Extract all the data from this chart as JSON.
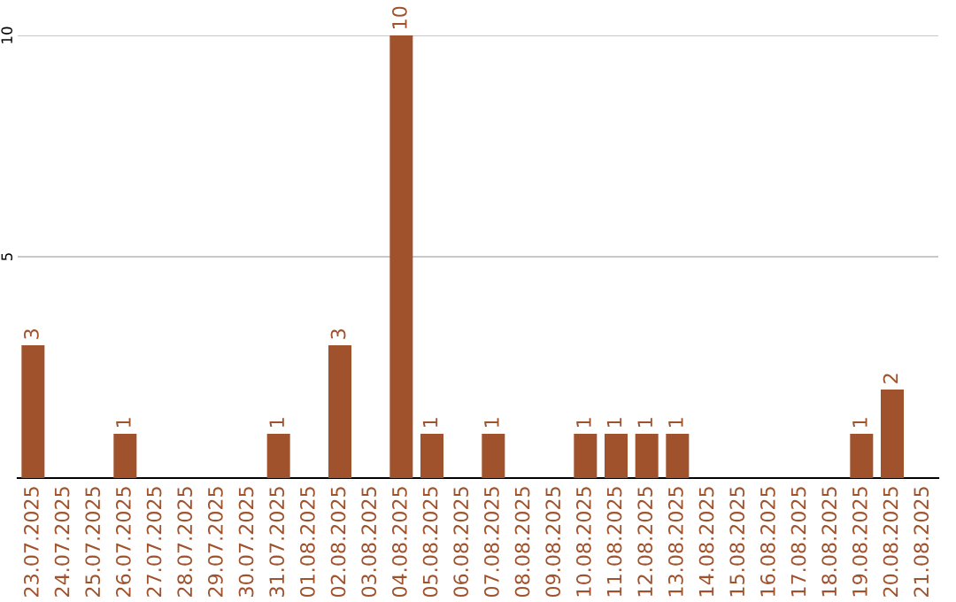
{
  "chart_data": {
    "type": "bar",
    "categories": [
      "23.07.2025",
      "24.07.2025",
      "25.07.2025",
      "26.07.2025",
      "27.07.2025",
      "28.07.2025",
      "29.07.2025",
      "30.07.2025",
      "31.07.2025",
      "01.08.2025",
      "02.08.2025",
      "03.08.2025",
      "04.08.2025",
      "05.08.2025",
      "06.08.2025",
      "07.08.2025",
      "08.08.2025",
      "09.08.2025",
      "10.08.2025",
      "11.08.2025",
      "12.08.2025",
      "13.08.2025",
      "14.08.2025",
      "15.08.2025",
      "16.08.2025",
      "17.08.2025",
      "18.08.2025",
      "19.08.2025",
      "20.08.2025",
      "21.08.2025"
    ],
    "series": [
      {
        "color": "#a0522d",
        "values": [
          3,
          0,
          0,
          1,
          0,
          0,
          0,
          0,
          1,
          0,
          3,
          0,
          10,
          1,
          0,
          1,
          0,
          0,
          1,
          1,
          1,
          1,
          0,
          0,
          0,
          0,
          0,
          1,
          2,
          0
        ],
        "value_labels": [
          "3",
          null,
          null,
          "1",
          null,
          null,
          null,
          null,
          "1",
          null,
          "3",
          null,
          "10",
          "1",
          null,
          "1",
          null,
          null,
          "1",
          "1",
          "1",
          "1",
          null,
          null,
          null,
          null,
          null,
          "1",
          "2",
          null
        ]
      }
    ],
    "ylim": [
      0,
      10
    ],
    "yticks": [
      5,
      10
    ],
    "grid": "y",
    "legend": false
  }
}
